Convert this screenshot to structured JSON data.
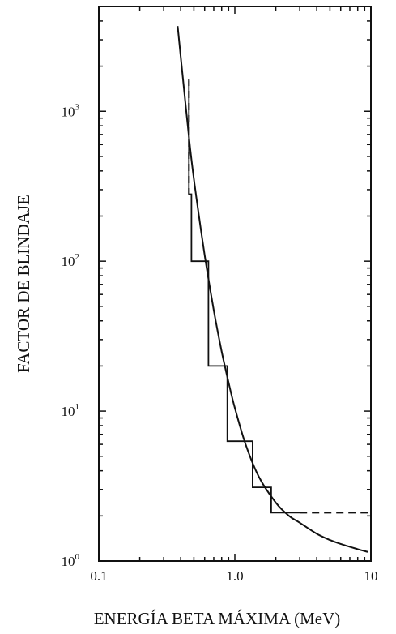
{
  "chart_data": {
    "type": "line",
    "xlabel": "ENERGÍA BETA MÁXIMA (MeV)",
    "ylabel": "FACTOR DE BLINDAJE",
    "x_scale": "log",
    "y_scale": "log",
    "xlim": [
      0.1,
      10
    ],
    "ylim": [
      1,
      5000
    ],
    "x_ticks": [
      {
        "value": 0.1,
        "label": "0.1"
      },
      {
        "value": 1,
        "label": "1.0"
      },
      {
        "value": 10,
        "label": "10"
      }
    ],
    "y_ticks": [
      {
        "value": 1,
        "base": "10",
        "exp": "0"
      },
      {
        "value": 10,
        "base": "10",
        "exp": "1"
      },
      {
        "value": 100,
        "base": "10",
        "exp": "2"
      },
      {
        "value": 1000,
        "base": "10",
        "exp": "3"
      }
    ],
    "grid": false,
    "series": [
      {
        "style": "solid-curve",
        "x": [
          0.38,
          0.42,
          0.47,
          0.52,
          0.6,
          0.7,
          0.8,
          0.9,
          1.0,
          1.2,
          1.5,
          2.0,
          2.5,
          3.0,
          4.0,
          5.0,
          6.0,
          8.0,
          9.5
        ],
        "y": [
          3700,
          1500,
          560,
          270,
          110,
          47,
          25,
          15.5,
          10.5,
          6.0,
          3.65,
          2.45,
          2.0,
          1.8,
          1.52,
          1.38,
          1.3,
          1.2,
          1.15
        ]
      },
      {
        "style": "step",
        "x": [
          0.46,
          0.46,
          0.48,
          0.48,
          0.64,
          0.64,
          0.88,
          0.88,
          1.35,
          1.35,
          1.85,
          1.85,
          3.0
        ],
        "y": [
          1600,
          280,
          280,
          100,
          100,
          20,
          20,
          6.3,
          6.3,
          3.1,
          3.1,
          2.1,
          2.1
        ]
      },
      {
        "style": "dashed",
        "x": [
          0.46,
          0.46
        ],
        "y": [
          1650,
          280
        ]
      },
      {
        "style": "dashed",
        "x": [
          3.0,
          9.5
        ],
        "y": [
          2.1,
          2.1
        ]
      }
    ]
  }
}
